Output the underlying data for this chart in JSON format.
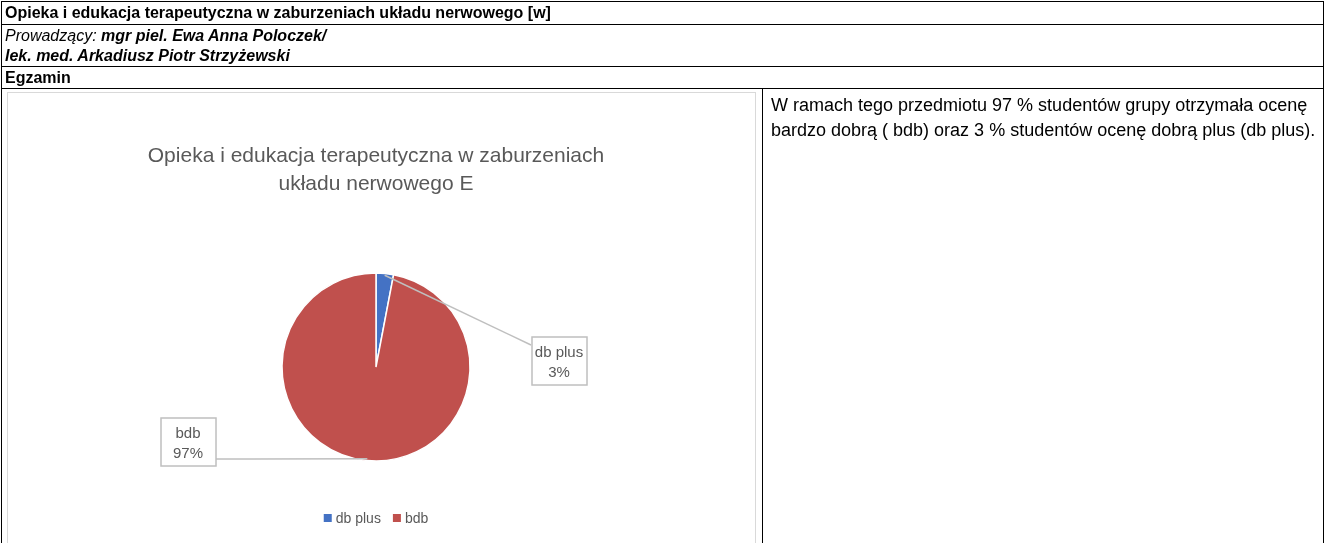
{
  "chart_data": {
    "type": "pie",
    "title": "Opieka i edukacja terapeutyczna w zaburzeniach układu nerwowego E",
    "categories": [
      "db plus",
      "bdb"
    ],
    "values": [
      3,
      97
    ],
    "colors": [
      "#4472c4",
      "#c0504d"
    ],
    "value_labels": [
      "3%",
      "97%"
    ],
    "legend": "bottom",
    "annotations": [
      "Opieka i edukacja terapeutyczna w zaburzeniach układu nerwowego [w]",
      "Prowadzący: mgr piel. Ewa Anna Poloczek/",
      "lek. med. Arkadiusz Piotr Strzyżewski",
      "Egzamin",
      "W ramach tego przedmiotu 97 % studentów grupy otrzymała ocenę bardzo dobrą ( bdb) oraz 3 % studentów ocenę  dobrą plus (db plus)."
    ]
  }
}
